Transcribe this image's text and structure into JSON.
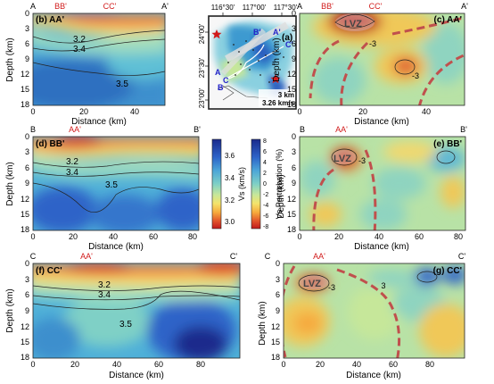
{
  "panels": {
    "b": {
      "tag": "(b) AA'",
      "x_ticks": [
        "0",
        "20",
        "40"
      ],
      "x_ticks_red": [],
      "y_ticks": [
        "0",
        "3",
        "6",
        "9",
        "12",
        "15",
        "18"
      ],
      "ylabel": "Depth (km)",
      "xlabel": "Distance (km)",
      "ends": [
        "A",
        "A'"
      ],
      "crossings": [
        "BB'",
        "CC'"
      ],
      "contours": [
        "3.2",
        "3.4",
        "3.5"
      ]
    },
    "c": {
      "tag": "(c) AA'",
      "x_ticks": [
        "0",
        "20",
        "40"
      ],
      "y_ticks": [
        "0",
        "3",
        "6",
        "9",
        "12",
        "15",
        "18"
      ],
      "ylabel": "Depth (km)",
      "xlabel": "Distance (km)",
      "ends": [
        "A",
        "A'"
      ],
      "crossings": [
        "BB'",
        "CC'"
      ],
      "annotations": [
        "LVZ",
        "-3",
        "-3"
      ]
    },
    "d": {
      "tag": "(d) BB'",
      "x_ticks": [
        "0",
        "20",
        "40",
        "60",
        "80"
      ],
      "y_ticks": [
        "0",
        "3",
        "6",
        "9",
        "12",
        "15",
        "18"
      ],
      "ylabel": "Depth (km)",
      "xlabel": "Distance (km)",
      "ends": [
        "B",
        "B'"
      ],
      "crossings": [
        "AA'"
      ],
      "contours": [
        "3.2",
        "3.4",
        "3.5"
      ]
    },
    "e": {
      "tag": "(e) BB'",
      "x_ticks": [
        "0",
        "20",
        "40",
        "60",
        "80"
      ],
      "y_ticks": [
        "0",
        "3",
        "6",
        "9",
        "12",
        "15",
        "18"
      ],
      "ylabel": "Depth (km)",
      "xlabel": "Distance (km)",
      "ends": [
        "B",
        "B'"
      ],
      "crossings": [
        "AA'"
      ],
      "annotations": [
        "LVZ",
        "-3"
      ]
    },
    "f": {
      "tag": "(f) CC'",
      "x_ticks": [
        "0",
        "20",
        "40",
        "60",
        "80"
      ],
      "y_ticks": [
        "0",
        "3",
        "6",
        "9",
        "12",
        "15",
        "18"
      ],
      "ylabel": "Depth (km)",
      "xlabel": "Distance (km)",
      "ends": [
        "C",
        "C'"
      ],
      "crossings": [
        "AA'"
      ],
      "contours": [
        "3.2",
        "3.4",
        "3.5"
      ]
    },
    "g": {
      "tag": "(g) CC'",
      "x_ticks": [
        "0",
        "20",
        "40",
        "60",
        "80"
      ],
      "y_ticks": [
        "0",
        "3",
        "6",
        "9",
        "12",
        "15",
        "18"
      ],
      "ylabel": "Depth (km)",
      "xlabel": "Distance (km)",
      "ends": [
        "C",
        "C'"
      ],
      "crossings": [
        "AA'"
      ],
      "annotations": [
        "LVZ",
        "-3",
        "3"
      ]
    }
  },
  "map": {
    "tag": "(a)",
    "lon_ticks": [
      "116°30'",
      "117°00'",
      "117°30'"
    ],
    "lat_ticks": [
      "24°00'",
      "23°30'",
      "23°00'"
    ],
    "profile_labels": [
      "A",
      "A'",
      "B",
      "B'",
      "C",
      "C'"
    ],
    "legend_depth": "3 km",
    "legend_vel": "3.26 km/s"
  },
  "vs_scale": {
    "label": "Vs (km/s)",
    "ticks": [
      "3.6",
      "3.4",
      "3.2",
      "3.0"
    ],
    "colors": [
      "#1a2a8c",
      "#2d63c8",
      "#4ca6d8",
      "#7fd0c6",
      "#c6e79a",
      "#f4e36a",
      "#f6a93c",
      "#e0502a",
      "#c0191c"
    ]
  },
  "pert_scale": {
    "label": "Vs Perturbation (%)",
    "ticks": [
      "8",
      "6",
      "4",
      "2",
      "0",
      "-2",
      "-4",
      "-6",
      "-8"
    ],
    "colors": [
      "#1a2a8c",
      "#2d63c8",
      "#4ca6d8",
      "#7fd0c6",
      "#c6e79a",
      "#f4e36a",
      "#f6a93c",
      "#e0502a",
      "#c0191c"
    ]
  },
  "colors": {
    "fault": "#c0504d",
    "crossing_label": "#d11b1b"
  }
}
